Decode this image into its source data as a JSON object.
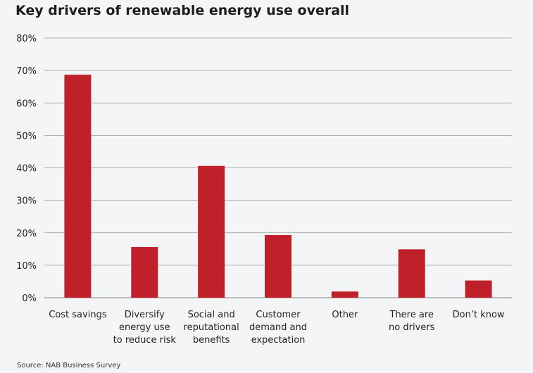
{
  "chart_data": {
    "type": "bar",
    "title": "Key drivers of renewable energy use overall",
    "source": "Source: NAB Business Survey",
    "categories": [
      [
        "Cost savings"
      ],
      [
        "Diversify",
        "energy use",
        "to reduce risk"
      ],
      [
        "Social and",
        "reputational",
        "benefits"
      ],
      [
        "Customer",
        "demand and",
        "expectation"
      ],
      [
        "Other"
      ],
      [
        "There are",
        "no drivers"
      ],
      [
        "Don’t know"
      ]
    ],
    "values": [
      68.7,
      15.6,
      40.6,
      19.3,
      1.9,
      14.9,
      5.3
    ],
    "ylim": [
      0,
      80
    ],
    "yticks": [
      0,
      10,
      20,
      30,
      40,
      50,
      60,
      70,
      80
    ],
    "ytick_labels": [
      "0%",
      "10%",
      "20%",
      "30%",
      "40%",
      "50%",
      "60%",
      "70%",
      "80%"
    ],
    "xlabel": "",
    "ylabel": "",
    "grid": true,
    "bar_color": "#c0202a",
    "grid_color": "#9a9a9a"
  }
}
